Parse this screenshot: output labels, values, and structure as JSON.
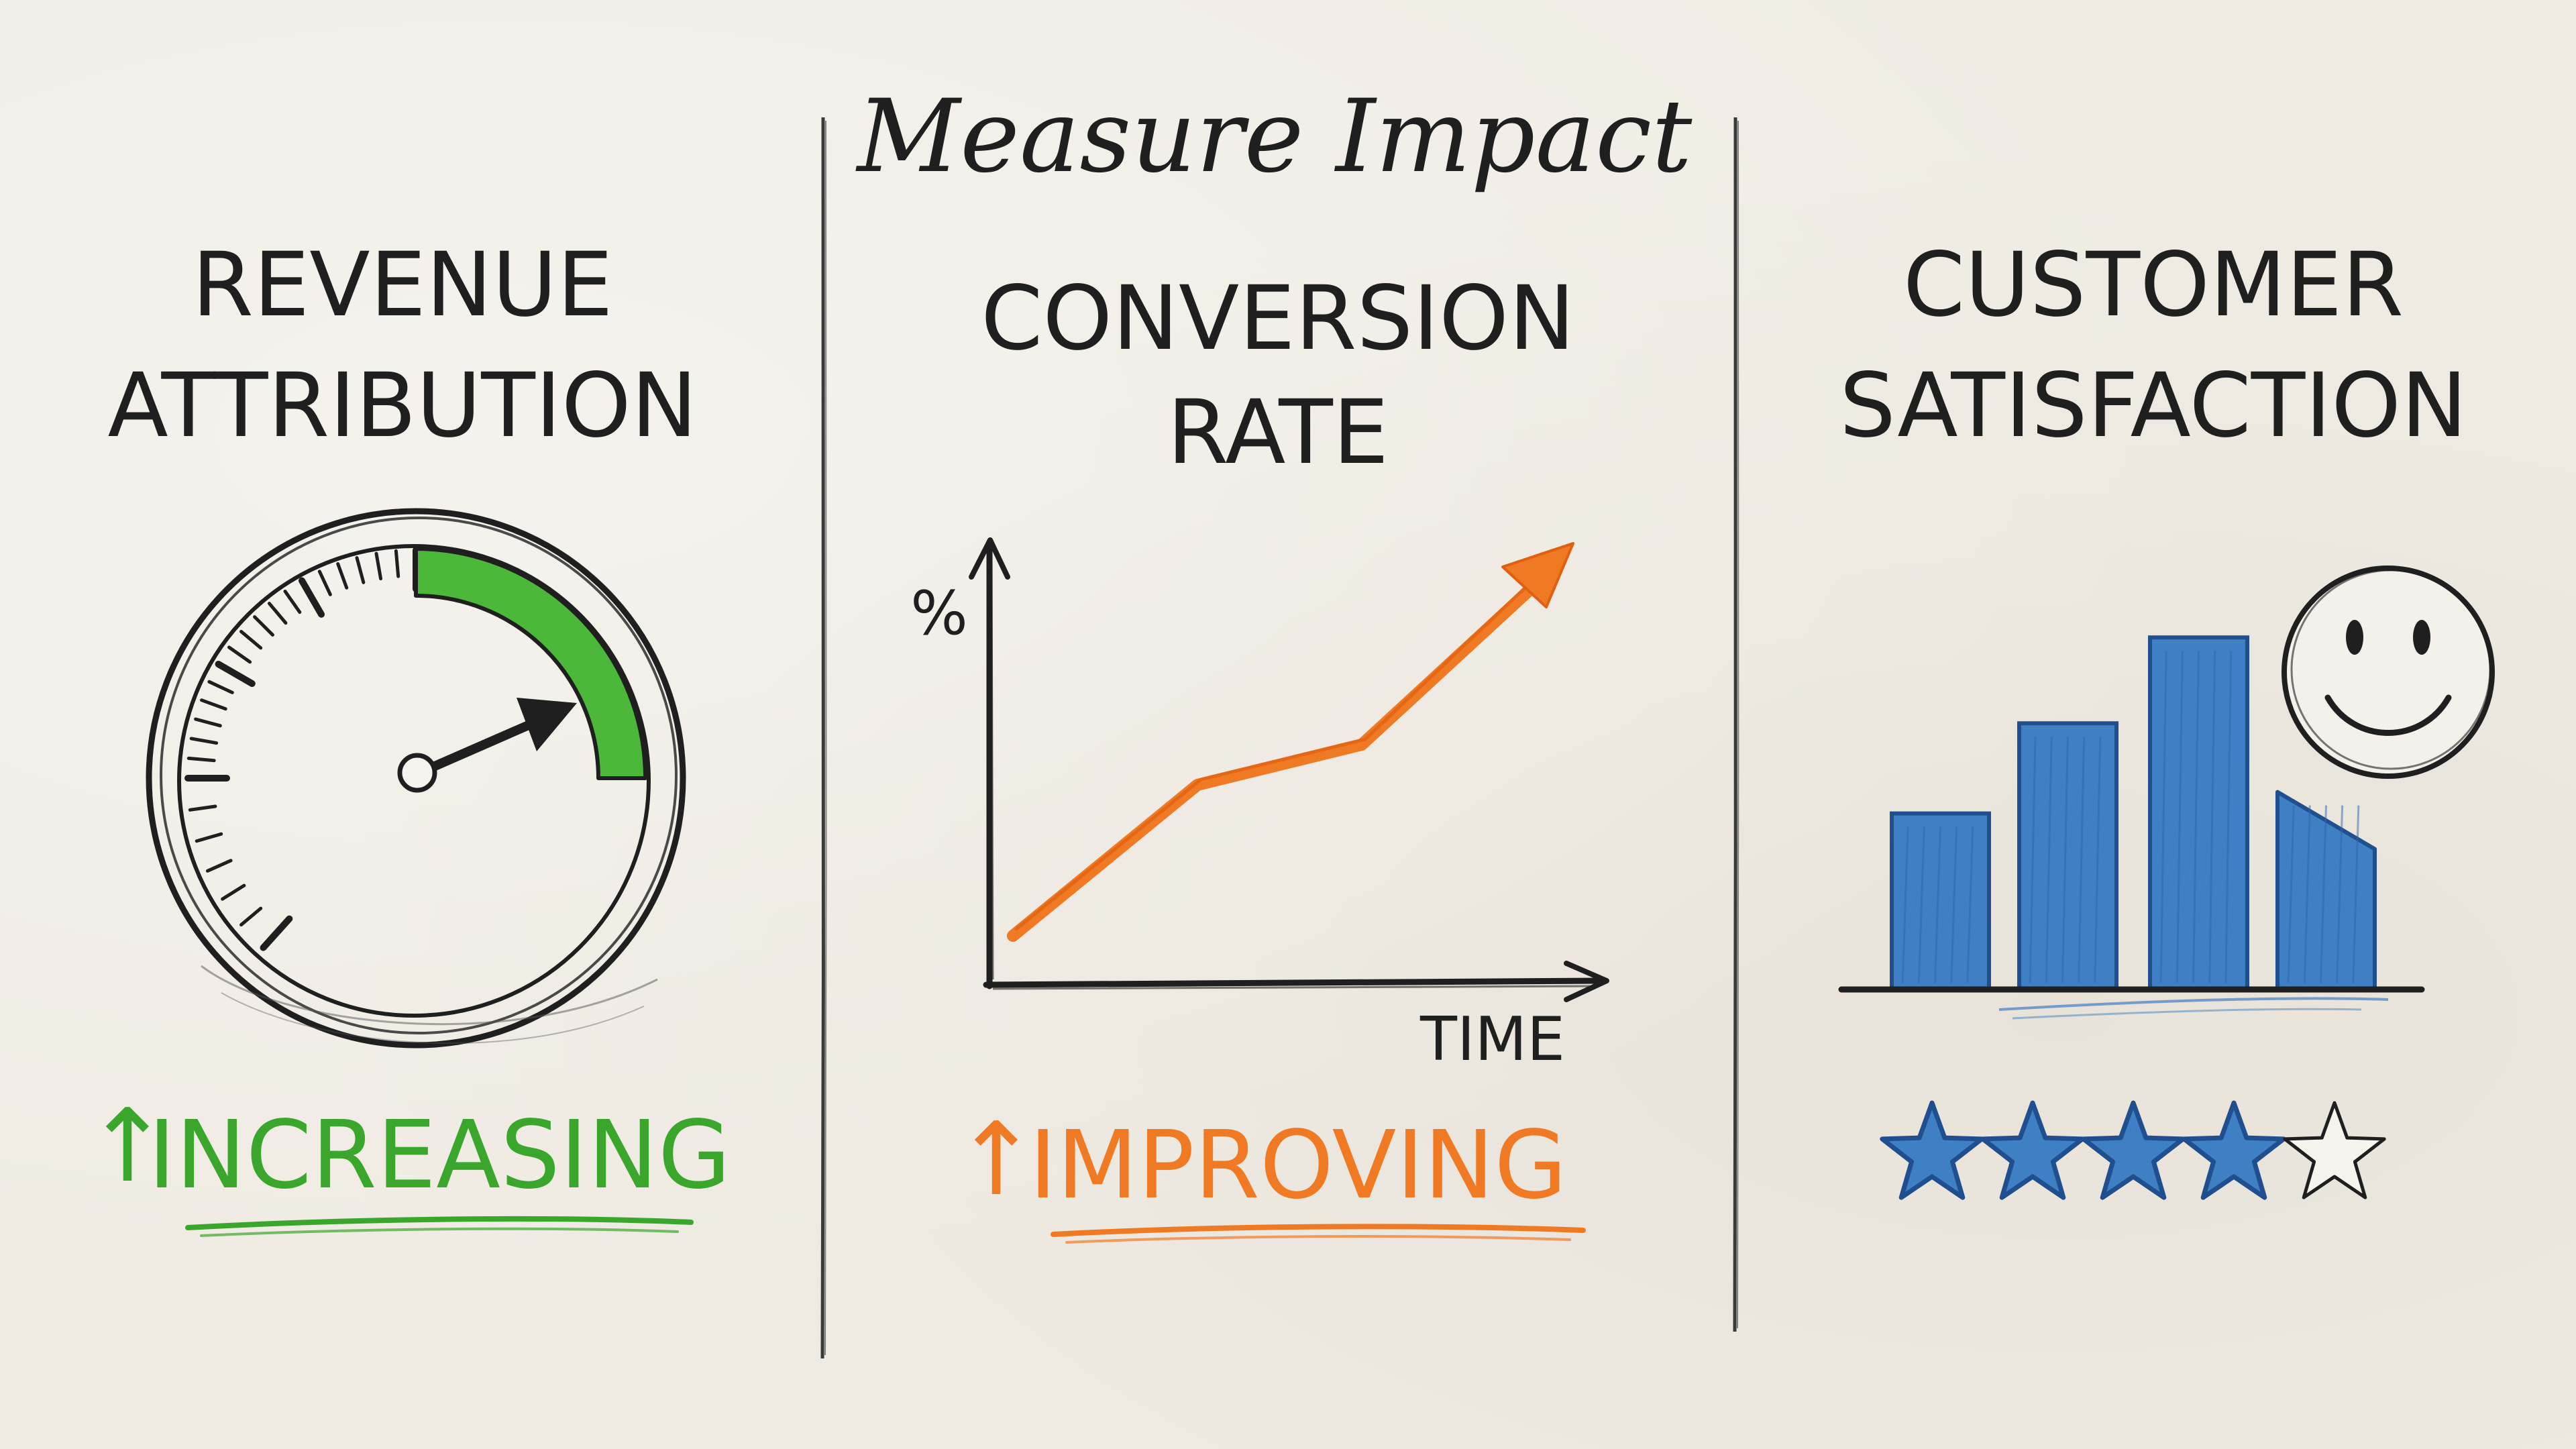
{
  "title": "Measure Impact",
  "colors": {
    "ink": "#1f1f1f",
    "green": "#3aa62c",
    "orange": "#f07a23",
    "blue": "#3f7fc4",
    "blue_dark": "#1f4f8f",
    "paper": "#f0ece4"
  },
  "panels": [
    {
      "heading_lines": [
        "REVENUE",
        "ATTRIBUTION"
      ],
      "graphic": "gauge-icon",
      "status_arrow": "↑",
      "status_label": "INCREASING",
      "status_color": "#3aa62c"
    },
    {
      "heading_lines": [
        "CONVERSION",
        "RATE"
      ],
      "graphic": "trend-line-chart",
      "y_axis_label": "%",
      "x_axis_label": "TIME",
      "status_arrow": "↑",
      "status_label": "IMPROVING",
      "status_color": "#f07a23"
    },
    {
      "heading_lines": [
        "CUSTOMER",
        "SATISFACTION"
      ],
      "graphic": "bar-chart-with-smiley-icon",
      "rating": {
        "filled": 4,
        "total": 5
      },
      "bar_levels": [
        0.41,
        0.62,
        0.82,
        0.46
      ]
    }
  ]
}
